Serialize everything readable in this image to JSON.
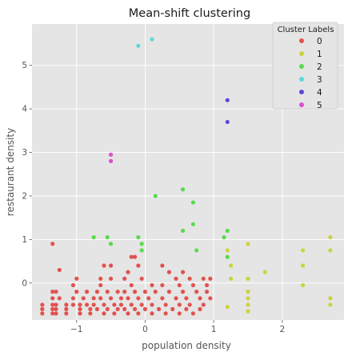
{
  "chart_data": {
    "type": "scatter",
    "title": "Mean-shift clustering",
    "xlabel": "population density",
    "ylabel": "restaurant density",
    "xlim": [
      -1.65,
      2.9
    ],
    "ylim": [
      -0.85,
      5.95
    ],
    "xticks": [
      -1,
      0,
      1,
      2
    ],
    "yticks": [
      0,
      1,
      2,
      3,
      4,
      5
    ],
    "grid": true,
    "legend": {
      "title": "Cluster Labels",
      "placement": "top-right"
    },
    "series": [
      {
        "name": "0",
        "color": "#e1524f",
        "points": [
          [
            -1.5,
            -0.5
          ],
          [
            -1.5,
            -0.6
          ],
          [
            -1.5,
            -0.7
          ],
          [
            -1.35,
            -0.2
          ],
          [
            -1.35,
            -0.35
          ],
          [
            -1.35,
            -0.5
          ],
          [
            -1.35,
            -0.6
          ],
          [
            -1.35,
            -0.7
          ],
          [
            -1.35,
            0.9
          ],
          [
            -1.3,
            -0.2
          ],
          [
            -1.3,
            -0.5
          ],
          [
            -1.3,
            -0.6
          ],
          [
            -1.3,
            -0.7
          ],
          [
            -1.25,
            0.3
          ],
          [
            -1.25,
            -0.35
          ],
          [
            -1.15,
            -0.5
          ],
          [
            -1.15,
            -0.6
          ],
          [
            -1.15,
            -0.7
          ],
          [
            -1.05,
            -0.05
          ],
          [
            -1.05,
            -0.35
          ],
          [
            -1.05,
            -0.5
          ],
          [
            -1.0,
            0.1
          ],
          [
            -1.0,
            -0.2
          ],
          [
            -0.95,
            -0.5
          ],
          [
            -0.95,
            -0.6
          ],
          [
            -0.95,
            -0.7
          ],
          [
            -0.9,
            -0.35
          ],
          [
            -0.85,
            -0.2
          ],
          [
            -0.85,
            -0.5
          ],
          [
            -0.8,
            -0.6
          ],
          [
            -0.8,
            -0.7
          ],
          [
            -0.75,
            -0.35
          ],
          [
            -0.75,
            -0.5
          ],
          [
            -0.7,
            -0.2
          ],
          [
            -0.7,
            -0.6
          ],
          [
            -0.65,
            0.1
          ],
          [
            -0.65,
            -0.05
          ],
          [
            -0.65,
            -0.35
          ],
          [
            -0.6,
            0.4
          ],
          [
            -0.6,
            -0.5
          ],
          [
            -0.6,
            -0.7
          ],
          [
            -0.55,
            -0.2
          ],
          [
            -0.55,
            -0.6
          ],
          [
            -0.5,
            0.4
          ],
          [
            -0.5,
            0.1
          ],
          [
            -0.5,
            -0.35
          ],
          [
            -0.45,
            -0.5
          ],
          [
            -0.45,
            -0.7
          ],
          [
            -0.4,
            -0.2
          ],
          [
            -0.4,
            -0.6
          ],
          [
            -0.35,
            -0.35
          ],
          [
            -0.35,
            -0.5
          ],
          [
            -0.3,
            0.1
          ],
          [
            -0.3,
            -0.2
          ],
          [
            -0.3,
            -0.6
          ],
          [
            -0.25,
            0.25
          ],
          [
            -0.25,
            -0.35
          ],
          [
            -0.25,
            -0.7
          ],
          [
            -0.2,
            0.6
          ],
          [
            -0.2,
            -0.05
          ],
          [
            -0.2,
            -0.5
          ],
          [
            -0.15,
            0.6
          ],
          [
            -0.15,
            -0.2
          ],
          [
            -0.15,
            -0.6
          ],
          [
            -0.1,
            0.4
          ],
          [
            -0.1,
            -0.35
          ],
          [
            -0.1,
            -0.7
          ],
          [
            -0.05,
            0.1
          ],
          [
            -0.05,
            -0.5
          ],
          [
            0.0,
            -0.2
          ],
          [
            0.0,
            -0.6
          ],
          [
            0.05,
            -0.35
          ],
          [
            0.1,
            -0.05
          ],
          [
            0.1,
            -0.5
          ],
          [
            0.1,
            -0.7
          ],
          [
            0.15,
            -0.2
          ],
          [
            0.2,
            -0.6
          ],
          [
            0.25,
            0.4
          ],
          [
            0.25,
            -0.05
          ],
          [
            0.25,
            -0.35
          ],
          [
            0.3,
            -0.5
          ],
          [
            0.3,
            -0.7
          ],
          [
            0.35,
            0.25
          ],
          [
            0.35,
            -0.2
          ],
          [
            0.4,
            -0.6
          ],
          [
            0.45,
            0.1
          ],
          [
            0.45,
            -0.35
          ],
          [
            0.5,
            -0.05
          ],
          [
            0.5,
            -0.5
          ],
          [
            0.5,
            -0.7
          ],
          [
            0.55,
            0.25
          ],
          [
            0.55,
            -0.2
          ],
          [
            0.6,
            -0.35
          ],
          [
            0.6,
            -0.6
          ],
          [
            0.65,
            0.1
          ],
          [
            0.65,
            -0.5
          ],
          [
            0.7,
            -0.05
          ],
          [
            0.7,
            -0.7
          ],
          [
            0.75,
            -0.2
          ],
          [
            0.8,
            -0.35
          ],
          [
            0.8,
            -0.6
          ],
          [
            0.85,
            0.1
          ],
          [
            0.85,
            -0.5
          ],
          [
            0.9,
            -0.05
          ],
          [
            0.9,
            -0.2
          ],
          [
            0.95,
            0.1
          ],
          [
            0.95,
            -0.35
          ]
        ]
      },
      {
        "name": "1",
        "color": "#cad43c",
        "points": [
          [
            1.2,
            0.75
          ],
          [
            1.2,
            -0.55
          ],
          [
            1.25,
            0.4
          ],
          [
            1.25,
            0.1
          ],
          [
            1.5,
            0.9
          ],
          [
            1.5,
            0.1
          ],
          [
            1.5,
            -0.2
          ],
          [
            1.5,
            -0.35
          ],
          [
            1.5,
            -0.5
          ],
          [
            1.5,
            -0.65
          ],
          [
            1.75,
            0.25
          ],
          [
            2.3,
            0.75
          ],
          [
            2.3,
            0.4
          ],
          [
            2.3,
            -0.05
          ],
          [
            2.7,
            1.05
          ],
          [
            2.7,
            0.75
          ],
          [
            2.7,
            -0.35
          ],
          [
            2.7,
            -0.5
          ]
        ]
      },
      {
        "name": "2",
        "color": "#5bd94e",
        "points": [
          [
            -0.75,
            1.05
          ],
          [
            -0.55,
            1.05
          ],
          [
            -0.5,
            0.9
          ],
          [
            -0.1,
            1.05
          ],
          [
            -0.05,
            0.9
          ],
          [
            -0.05,
            0.75
          ],
          [
            0.15,
            2.0
          ],
          [
            0.55,
            2.15
          ],
          [
            0.55,
            1.2
          ],
          [
            0.7,
            1.85
          ],
          [
            0.7,
            1.35
          ],
          [
            0.75,
            0.75
          ],
          [
            1.15,
            1.05
          ],
          [
            1.2,
            1.2
          ],
          [
            1.2,
            0.6
          ]
        ]
      },
      {
        "name": "3",
        "color": "#5ed7d8",
        "points": [
          [
            -0.1,
            5.45
          ],
          [
            0.1,
            5.6
          ]
        ]
      },
      {
        "name": "4",
        "color": "#5a4bd6",
        "points": [
          [
            1.2,
            4.2
          ],
          [
            1.2,
            3.7
          ]
        ]
      },
      {
        "name": "5",
        "color": "#d94fd1",
        "points": [
          [
            -0.5,
            2.95
          ],
          [
            -0.5,
            2.8
          ]
        ]
      }
    ]
  }
}
